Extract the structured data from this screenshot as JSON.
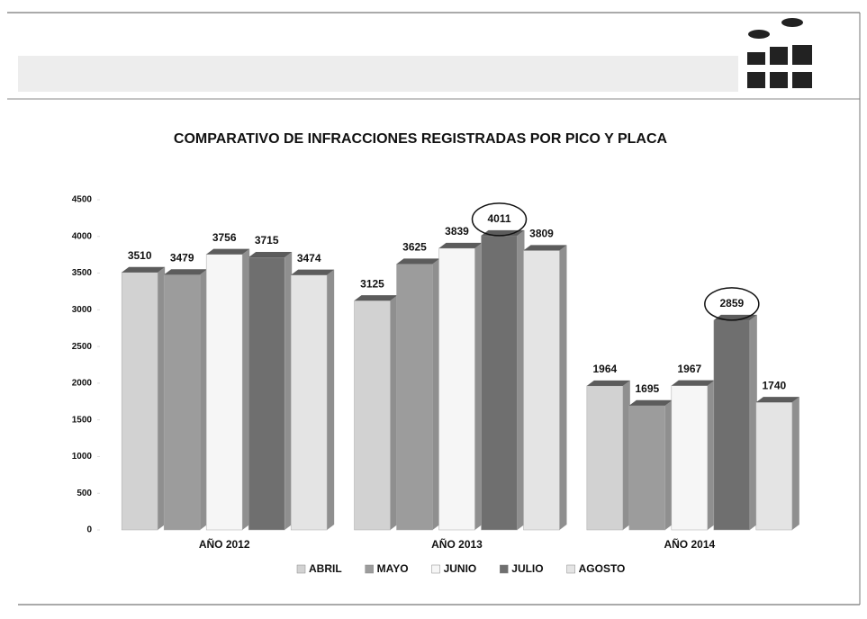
{
  "chart_data": {
    "type": "bar3d",
    "title": "COMPARATIVO DE INFRACCIONES REGISTRADAS POR PICO Y PLACA",
    "categories": [
      "AÑO 2012",
      "AÑO 2013",
      "AÑO 2014"
    ],
    "series": [
      {
        "name": "ABRIL",
        "color": "#d2d2d2",
        "values": [
          3510,
          3125,
          1964
        ]
      },
      {
        "name": "MAYO",
        "color": "#9c9c9c",
        "values": [
          3479,
          3625,
          1695
        ]
      },
      {
        "name": "JUNIO",
        "color": "#f6f6f6",
        "values": [
          3756,
          3839,
          1967
        ]
      },
      {
        "name": "JULIO",
        "color": "#6f6f6f",
        "values": [
          3715,
          4011,
          2859
        ]
      },
      {
        "name": "AGOSTO",
        "color": "#e4e4e4",
        "values": [
          3474,
          3809,
          1740
        ]
      }
    ],
    "ylim": [
      0,
      4500
    ],
    "yticks": [
      0,
      500,
      1000,
      1500,
      2000,
      2500,
      3000,
      3500,
      4000,
      4500
    ],
    "legend": "bottom"
  }
}
